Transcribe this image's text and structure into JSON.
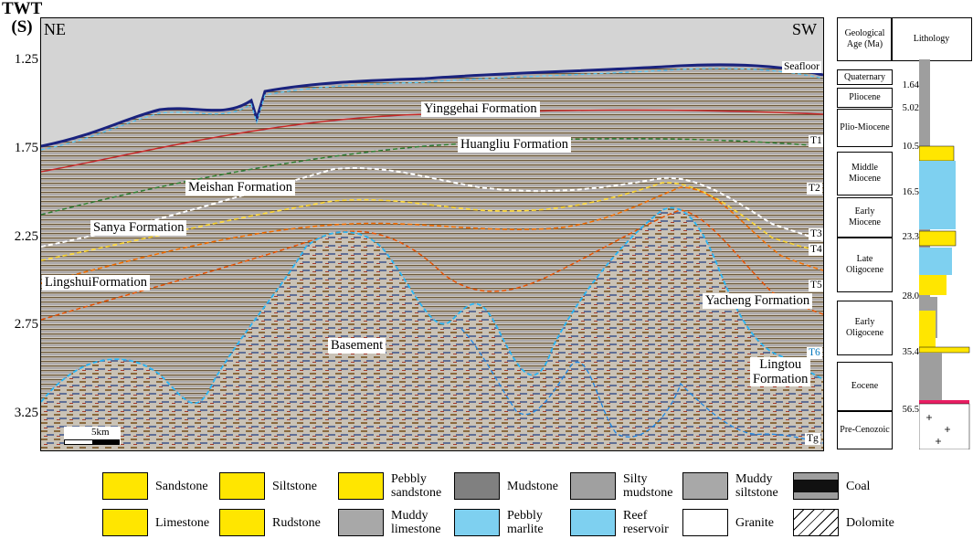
{
  "axis": {
    "title_line1": "TWT",
    "title_line2": "(S)",
    "ticks": [
      "1.25",
      "1.75",
      "2.25",
      "2.75",
      "3.25"
    ]
  },
  "section": {
    "dir_left": "NE",
    "dir_right": "SW",
    "scale": "5km",
    "formations": {
      "yinggehai": "Yinggehai Formation",
      "huangliu": "Huangliu Formation",
      "meishan": "Meishan Formation",
      "sanya": "Sanya Formation",
      "lingshui": "LingshuiFormation",
      "yacheng": "Yacheng Formation",
      "basement": "Basement",
      "lingtou1": "Lingtou",
      "lingtou2": "Formation"
    },
    "horizons": {
      "seafloor": "Seafloor",
      "t1": "T1",
      "t2": "T2",
      "t3": "T3",
      "t4": "T4",
      "t5": "T5",
      "t6": "T6",
      "tg": "Tg"
    }
  },
  "strat_column": {
    "header_age": "Geological Age (Ma)",
    "header_litho": "Lithology",
    "periods": [
      {
        "label": "Quaternary"
      },
      {
        "label": "Pliocene"
      },
      {
        "label": "Plio-Miocene"
      },
      {
        "label": "Middle Miocene"
      },
      {
        "label": "Early Miocene"
      },
      {
        "label": "Late Oligocene"
      },
      {
        "label": "Early Oligocene"
      },
      {
        "label": "Eocene"
      },
      {
        "label": "Pre-Cenozoic"
      }
    ],
    "ages": [
      "1.64",
      "5.02",
      "10.5",
      "16.5",
      "23.3",
      "28.0",
      "35.4",
      "56.5"
    ]
  },
  "legend": [
    {
      "label": "Sandstone",
      "pattern": "sandstone",
      "color": "#ffe600"
    },
    {
      "label": "Siltstone",
      "pattern": "siltstone",
      "color": "#ffe600"
    },
    {
      "label": "Pebbly sandstone",
      "pattern": "pebbly-sandstone",
      "color": "#ffe600"
    },
    {
      "label": "Mudstone",
      "pattern": "mudstone",
      "color": "#808080"
    },
    {
      "label": "Silty mudstone",
      "pattern": "silty-mudstone",
      "color": "#a0a0a0"
    },
    {
      "label": "Muddy siltstone",
      "pattern": "muddy-siltstone",
      "color": "#a8a8a8"
    },
    {
      "label": "Coal",
      "pattern": "coal",
      "color": "#111111"
    },
    {
      "label": "Limestone",
      "pattern": "limestone",
      "color": "#ffe600"
    },
    {
      "label": "Rudstone",
      "pattern": "rudstone",
      "color": "#ffe600"
    },
    {
      "label": "Muddy limestone",
      "pattern": "muddy-limestone",
      "color": "#a8a8a8"
    },
    {
      "label": "Pebbly marlite",
      "pattern": "pebbly-marlite",
      "color": "#7ed0f0"
    },
    {
      "label": "Reef reservoir",
      "pattern": "reef",
      "color": "#7ed0f0"
    },
    {
      "label": "Granite",
      "pattern": "granite",
      "color": "#ffffff"
    },
    {
      "label": "Dolomite",
      "pattern": "dolomite",
      "color": "#ffffff"
    }
  ]
}
